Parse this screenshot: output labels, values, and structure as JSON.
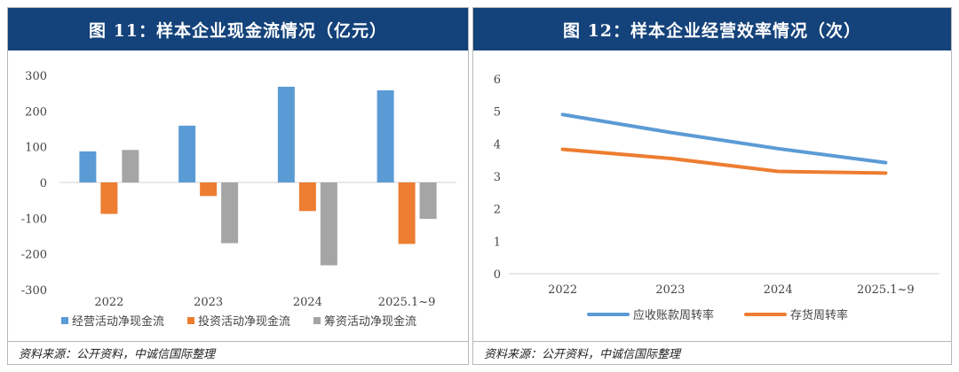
{
  "chart_data": [
    {
      "type": "bar",
      "title": "图 11：样本企业现金流情况（亿元）",
      "categories": [
        "2022",
        "2023",
        "2024",
        "2025.1~9"
      ],
      "series": [
        {
          "name": "经营活动净现金流",
          "values": [
            87,
            159,
            268,
            258
          ],
          "color": "#5b9bd5"
        },
        {
          "name": "投资活动净现金流",
          "values": [
            -88,
            -38,
            -80,
            -172
          ],
          "color": "#ed7d31"
        },
        {
          "name": "筹资活动净现金流",
          "values": [
            91,
            -170,
            -232,
            -102
          ],
          "color": "#a5a5a5"
        }
      ],
      "ylim": [
        -300,
        300
      ],
      "yticks": [
        300,
        200,
        100,
        0,
        -100,
        -200,
        -300
      ],
      "ytick_labels": [
        "300",
        "200",
        "100",
        "0",
        "-100",
        "-200",
        "-300"
      ],
      "legend": "bottom",
      "source": "资料来源：公开资料，中诚信国际整理"
    },
    {
      "type": "line",
      "title": "图 12：样本企业经营效率情况（次）",
      "categories": [
        "2022",
        "2023",
        "2024",
        "2025.1~9"
      ],
      "series": [
        {
          "name": "应收账款周转率",
          "values": [
            4.9,
            4.35,
            3.85,
            3.42
          ],
          "color": "#5b9bd5"
        },
        {
          "name": "存货周转率",
          "values": [
            3.83,
            3.55,
            3.15,
            3.1
          ],
          "color": "#ed7d31"
        }
      ],
      "ylim": [
        0,
        6
      ],
      "yticks": [
        6,
        5,
        4,
        3,
        2,
        1,
        0
      ],
      "ytick_labels": [
        "6",
        "5",
        "4",
        "3",
        "2",
        "1",
        "0"
      ],
      "legend": "bottom",
      "source": "资料来源：公开资料，中诚信国际整理"
    }
  ]
}
